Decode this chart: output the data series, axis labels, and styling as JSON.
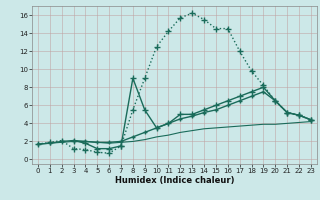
{
  "xlabel": "Humidex (Indice chaleur)",
  "bg_color": "#cce8e8",
  "line_color": "#1a6b5a",
  "xlim": [
    -0.5,
    23.5
  ],
  "ylim": [
    -0.5,
    17.0
  ],
  "xticks": [
    0,
    1,
    2,
    3,
    4,
    5,
    6,
    7,
    8,
    9,
    10,
    11,
    12,
    13,
    14,
    15,
    16,
    17,
    18,
    19,
    20,
    21,
    22,
    23
  ],
  "yticks": [
    0,
    2,
    4,
    6,
    8,
    10,
    12,
    14,
    16
  ],
  "series": [
    {
      "x": [
        0,
        1,
        2,
        3,
        4,
        5,
        6,
        7,
        8,
        9,
        10,
        11,
        12,
        13,
        14,
        15,
        16,
        17,
        18,
        19,
        20,
        21,
        22,
        23
      ],
      "y": [
        1.7,
        1.9,
        2.1,
        1.2,
        1.1,
        0.8,
        0.7,
        1.5,
        5.5,
        9.0,
        12.5,
        14.2,
        15.7,
        16.2,
        15.5,
        14.5,
        14.5,
        12.0,
        9.8,
        8.2,
        6.5,
        5.2,
        4.9,
        4.4
      ],
      "style": ":",
      "marker": "+",
      "ms": 4,
      "lw": 1.0
    },
    {
      "x": [
        3,
        4,
        5,
        6,
        7,
        8,
        9,
        10,
        11,
        12,
        13,
        14,
        15,
        16,
        17,
        18,
        19,
        20,
        21,
        22,
        23
      ],
      "y": [
        2.1,
        1.8,
        1.2,
        1.2,
        1.5,
        9.0,
        5.5,
        3.5,
        4.0,
        5.0,
        5.0,
        5.5,
        6.0,
        6.5,
        7.0,
        7.5,
        8.0,
        6.5,
        5.2,
        4.9,
        4.4
      ],
      "style": "-",
      "marker": "+",
      "ms": 4,
      "lw": 1.0
    },
    {
      "x": [
        0,
        1,
        2,
        3,
        4,
        5,
        6,
        7,
        8,
        9,
        10,
        11,
        12,
        13,
        14,
        15,
        16,
        17,
        18,
        19,
        20,
        21,
        22,
        23
      ],
      "y": [
        1.7,
        1.8,
        2.0,
        2.1,
        2.0,
        1.9,
        1.9,
        2.0,
        2.5,
        3.0,
        3.5,
        4.0,
        4.5,
        4.8,
        5.2,
        5.5,
        6.0,
        6.5,
        7.0,
        7.5,
        6.5,
        5.2,
        4.9,
        4.4
      ],
      "style": "-",
      "marker": "+",
      "ms": 3,
      "lw": 1.0
    },
    {
      "x": [
        0,
        1,
        2,
        3,
        4,
        5,
        6,
        7,
        8,
        9,
        10,
        11,
        12,
        13,
        14,
        15,
        16,
        17,
        18,
        19,
        20,
        21,
        22,
        23
      ],
      "y": [
        1.7,
        1.8,
        1.9,
        2.0,
        2.0,
        1.9,
        1.8,
        1.9,
        2.0,
        2.2,
        2.5,
        2.7,
        3.0,
        3.2,
        3.4,
        3.5,
        3.6,
        3.7,
        3.8,
        3.9,
        3.9,
        4.0,
        4.1,
        4.2
      ],
      "style": "-",
      "marker": null,
      "ms": 3,
      "lw": 0.8
    }
  ]
}
